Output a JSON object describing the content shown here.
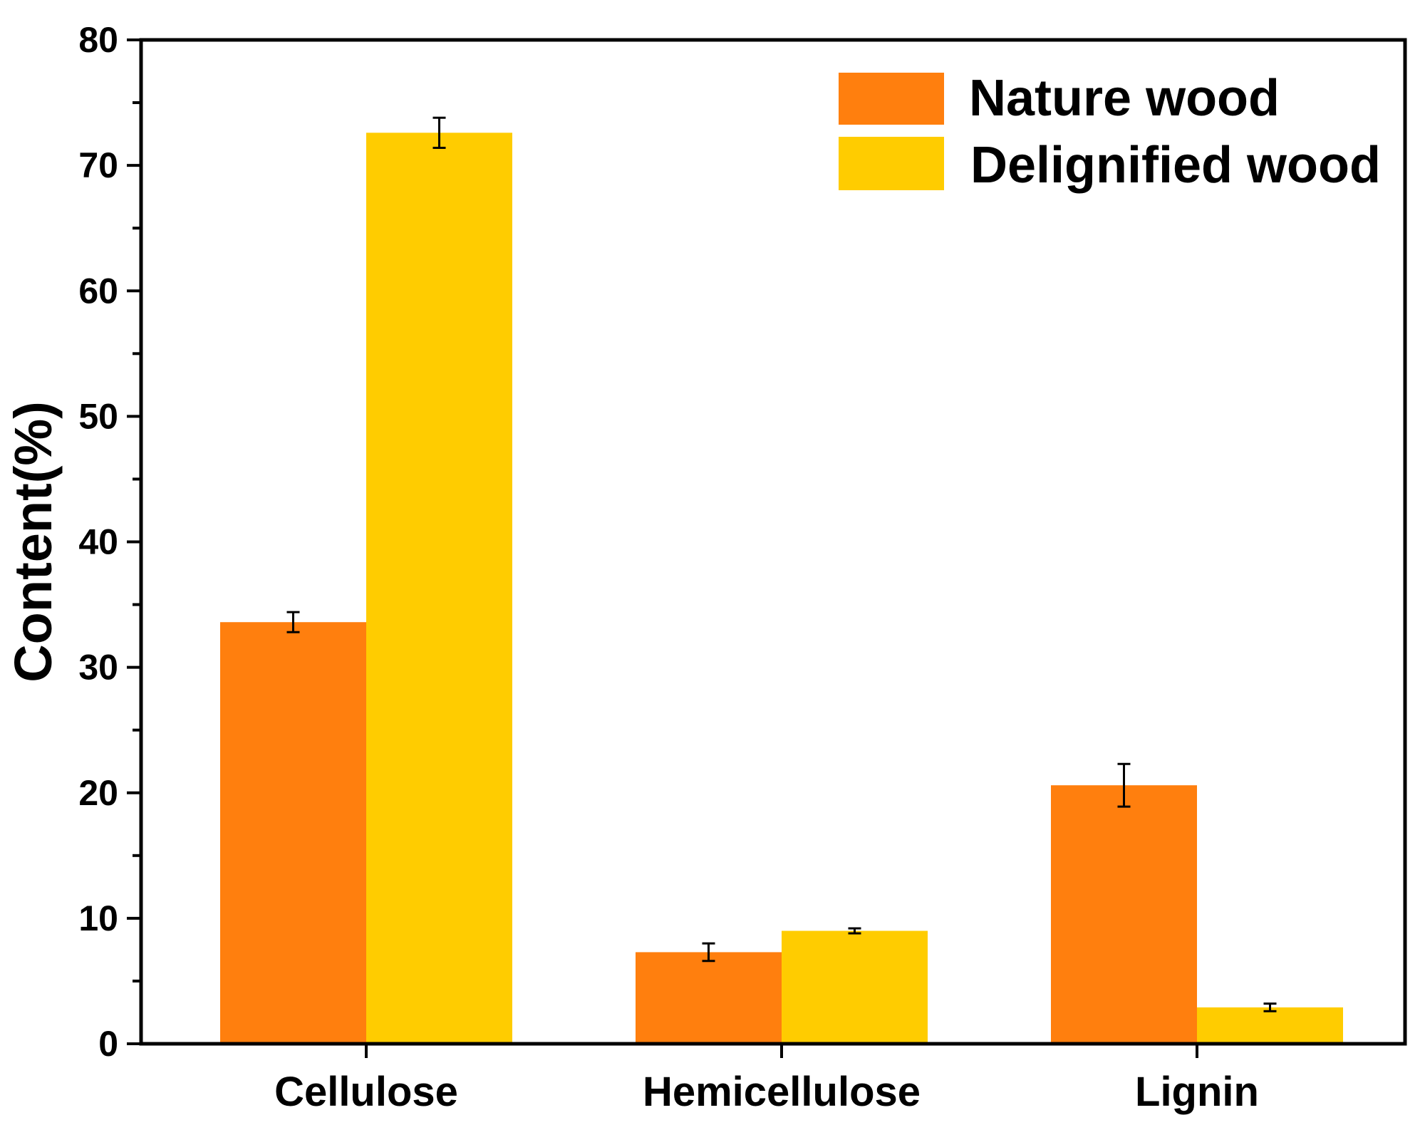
{
  "chart_data": {
    "type": "bar",
    "title": "",
    "xlabel": "",
    "ylabel": "Content(%)",
    "ylim": [
      0,
      80
    ],
    "yticks": [
      0,
      10,
      20,
      30,
      40,
      50,
      60,
      70,
      80
    ],
    "ytick_labels": [
      "0",
      "10",
      "20",
      "30",
      "40",
      "50",
      "60",
      "70",
      "80"
    ],
    "categories": [
      "Cellulose",
      "Hemicellulose",
      "Lignin"
    ],
    "series": [
      {
        "name": "Nature wood",
        "color": "#ff7f0e",
        "values": [
          33.6,
          7.3,
          20.6
        ],
        "errors": [
          0.8,
          0.7,
          1.7
        ]
      },
      {
        "name": "Delignified wood",
        "color": "#ffcc00",
        "values": [
          72.6,
          9.0,
          2.9
        ],
        "errors": [
          1.2,
          0.2,
          0.3
        ]
      }
    ],
    "grid": false,
    "legend_position": "top-right"
  }
}
